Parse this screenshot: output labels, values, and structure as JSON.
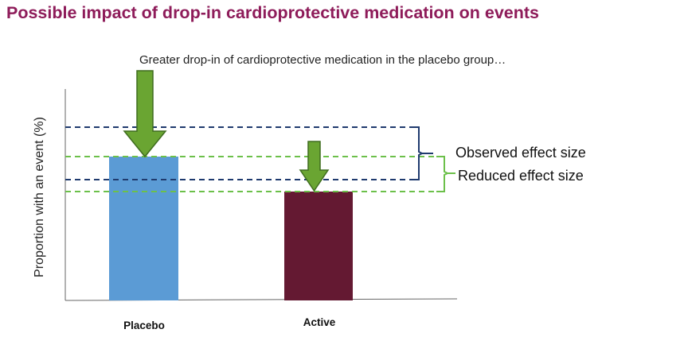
{
  "title": "Possible impact of drop-in cardioprotective medication on events",
  "annotation": "Greater drop-in of cardioprotective medication in the placebo group…",
  "y_axis_label": "Proportion with an event (%)",
  "bars": [
    {
      "label": "Placebo",
      "color": "#5b9bd5"
    },
    {
      "label": "Active",
      "color": "#641932"
    }
  ],
  "brackets": {
    "observed": {
      "label": "Observed effect size",
      "color": "#1f3a6e"
    },
    "reduced": {
      "label": "Reduced effect size",
      "color": "#6cc04a"
    }
  },
  "arrow_color": "#6aa532"
}
